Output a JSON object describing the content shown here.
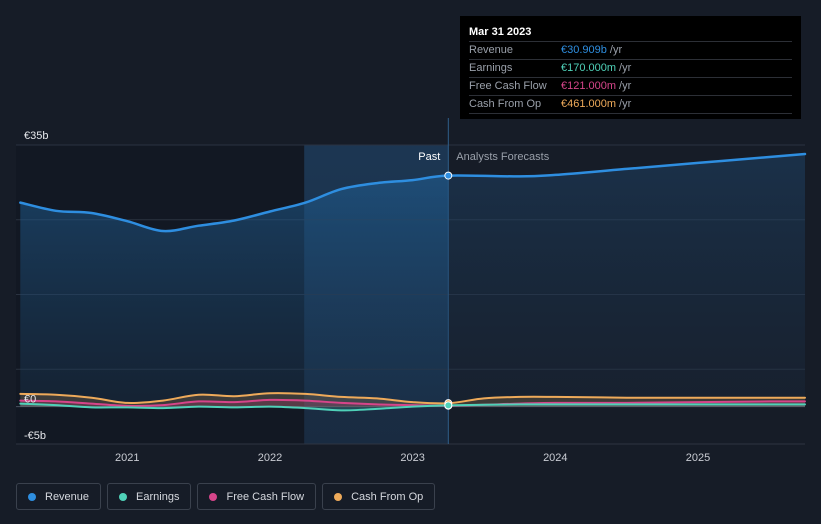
{
  "chart_data": {
    "type": "line",
    "title": "",
    "xlabel": "",
    "ylabel": "",
    "ylim": [
      -5,
      35
    ],
    "y_tick_labels": [
      {
        "value": 35,
        "label": "€35b"
      },
      {
        "value": 0,
        "label": "€0"
      },
      {
        "value": -5,
        "label": "-€5b"
      }
    ],
    "x_ticks": [
      {
        "year": 2021,
        "label": "2021"
      },
      {
        "year": 2022,
        "label": "2022"
      },
      {
        "year": 2023,
        "label": "2023"
      },
      {
        "year": 2024,
        "label": "2024"
      },
      {
        "year": 2025,
        "label": "2025"
      }
    ],
    "x_range": [
      2020.22,
      2025.75
    ],
    "past_label": "Past",
    "forecast_label": "Analysts Forecasts",
    "forecast_start": 2023.25,
    "shaded_region_start": 2022.24,
    "series": [
      {
        "name": "Revenue",
        "color": "#2e8ee0",
        "x": [
          2020.25,
          2020.5,
          2020.75,
          2021.0,
          2021.25,
          2021.5,
          2021.75,
          2022.0,
          2022.25,
          2022.5,
          2022.75,
          2023.0,
          2023.25,
          2023.75,
          2024.0,
          2024.5,
          2025.0,
          2025.5,
          2025.75
        ],
        "values": [
          27.3,
          26.2,
          25.9,
          24.8,
          23.5,
          24.2,
          24.9,
          26.1,
          27.3,
          29.1,
          29.9,
          30.3,
          30.909,
          30.8,
          31.0,
          31.8,
          32.6,
          33.4,
          33.8
        ]
      },
      {
        "name": "Earnings",
        "color": "#4fd1b8",
        "x": [
          2020.25,
          2020.5,
          2020.75,
          2021.0,
          2021.25,
          2021.5,
          2021.75,
          2022.0,
          2022.25,
          2022.5,
          2022.75,
          2023.0,
          2023.25,
          2023.75,
          2024.0,
          2024.5,
          2025.0,
          2025.5,
          2025.75
        ],
        "values": [
          0.4,
          0.2,
          -0.1,
          -0.1,
          -0.2,
          0.0,
          -0.1,
          0.0,
          -0.2,
          -0.5,
          -0.3,
          0.0,
          0.17,
          0.3,
          0.3,
          0.3,
          0.3,
          0.3,
          0.3
        ]
      },
      {
        "name": "Free Cash Flow",
        "color": "#d6458a",
        "x": [
          2020.25,
          2020.5,
          2020.75,
          2021.0,
          2021.25,
          2021.5,
          2021.75,
          2022.0,
          2022.25,
          2022.5,
          2022.75,
          2023.0,
          2023.25,
          2023.75,
          2024.0,
          2024.5,
          2025.0,
          2025.5,
          2025.75
        ],
        "values": [
          0.8,
          0.7,
          0.4,
          0.1,
          0.2,
          0.7,
          0.6,
          0.9,
          0.8,
          0.5,
          0.3,
          0.2,
          0.121,
          0.4,
          0.5,
          0.5,
          0.6,
          0.7,
          0.7
        ]
      },
      {
        "name": "Cash From Op",
        "color": "#eeaa5a",
        "x": [
          2020.25,
          2020.5,
          2020.75,
          2021.0,
          2021.25,
          2021.5,
          2021.75,
          2022.0,
          2022.25,
          2022.5,
          2022.75,
          2023.0,
          2023.25,
          2023.5,
          2023.75,
          2024.0,
          2024.5,
          2025.0,
          2025.5,
          2025.75
        ],
        "values": [
          1.7,
          1.6,
          1.2,
          0.5,
          0.8,
          1.6,
          1.4,
          1.8,
          1.7,
          1.3,
          1.1,
          0.6,
          0.461,
          1.1,
          1.3,
          1.3,
          1.2,
          1.2,
          1.2,
          1.2
        ]
      }
    ]
  },
  "tooltip": {
    "date": "Mar 31 2023",
    "rows": [
      {
        "label": "Revenue",
        "value": "€30.909b",
        "unit": "/yr",
        "color": "#2e8ee0"
      },
      {
        "label": "Earnings",
        "value": "€170.000m",
        "unit": "/yr",
        "color": "#4fd1b8"
      },
      {
        "label": "Free Cash Flow",
        "value": "€121.000m",
        "unit": "/yr",
        "color": "#d6458a"
      },
      {
        "label": "Cash From Op",
        "value": "€461.000m",
        "unit": "/yr",
        "color": "#eeaa5a"
      }
    ]
  },
  "legend": [
    {
      "label": "Revenue",
      "color": "#2e8ee0"
    },
    {
      "label": "Earnings",
      "color": "#4fd1b8"
    },
    {
      "label": "Free Cash Flow",
      "color": "#d6458a"
    },
    {
      "label": "Cash From Op",
      "color": "#eeaa5a"
    }
  ]
}
